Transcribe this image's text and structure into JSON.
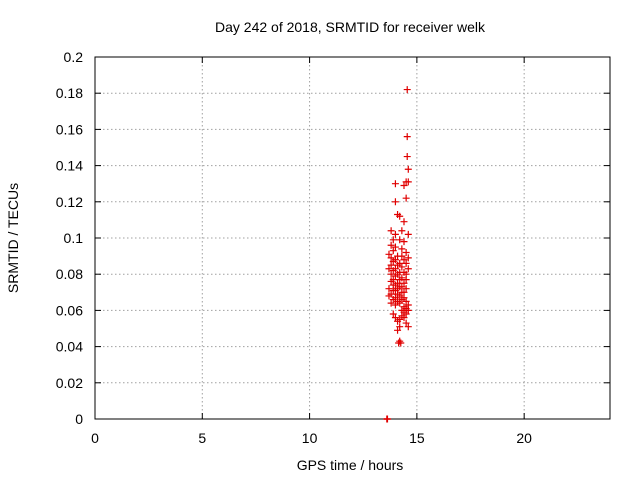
{
  "chart_data": {
    "type": "scatter",
    "title": "Day 242 of 2018, SRMTID for receiver welk",
    "xlabel": "GPS time / hours",
    "ylabel": "SRMTID / TECUs",
    "xlim": [
      0,
      24
    ],
    "ylim": [
      0,
      0.2
    ],
    "xticks": [
      0,
      5,
      10,
      15,
      20
    ],
    "xtick_labels": [
      "0",
      "5",
      "10",
      "15",
      "20"
    ],
    "yticks": [
      0,
      0.02,
      0.04,
      0.06,
      0.08,
      0.1,
      0.12,
      0.14,
      0.16,
      0.18,
      0.2
    ],
    "ytick_labels": [
      "0",
      "0.02",
      "0.04",
      "0.06",
      "0.08",
      "0.1",
      "0.12",
      "0.14",
      "0.16",
      "0.18",
      "0.2"
    ],
    "grid": true,
    "marker": "+",
    "color": "#e00000",
    "series": [
      {
        "name": "SRMTID",
        "points": [
          [
            13.6,
            0.0
          ],
          [
            13.61,
            0.0
          ],
          [
            13.62,
            0.0
          ],
          [
            13.63,
            0.0
          ],
          [
            14.55,
            0.182
          ],
          [
            14.55,
            0.156
          ],
          [
            14.55,
            0.145
          ],
          [
            14.6,
            0.138
          ],
          [
            14.5,
            0.131
          ],
          [
            14.6,
            0.131
          ],
          [
            14.0,
            0.13
          ],
          [
            14.4,
            0.129
          ],
          [
            14.5,
            0.122
          ],
          [
            14.0,
            0.12
          ],
          [
            14.1,
            0.113
          ],
          [
            14.2,
            0.112
          ],
          [
            14.4,
            0.109
          ],
          [
            13.8,
            0.104
          ],
          [
            14.3,
            0.104
          ],
          [
            14.0,
            0.102
          ],
          [
            14.6,
            0.102
          ],
          [
            13.9,
            0.099
          ],
          [
            14.2,
            0.099
          ],
          [
            14.4,
            0.098
          ],
          [
            13.8,
            0.096
          ],
          [
            14.0,
            0.095
          ],
          [
            14.3,
            0.094
          ],
          [
            13.9,
            0.093
          ],
          [
            14.5,
            0.092
          ],
          [
            13.7,
            0.091
          ],
          [
            14.1,
            0.09
          ],
          [
            14.3,
            0.09
          ],
          [
            13.8,
            0.089
          ],
          [
            14.6,
            0.089
          ],
          [
            14.0,
            0.088
          ],
          [
            14.4,
            0.088
          ],
          [
            13.9,
            0.087
          ],
          [
            14.2,
            0.086
          ],
          [
            14.5,
            0.086
          ],
          [
            13.8,
            0.085
          ],
          [
            14.1,
            0.085
          ],
          [
            14.3,
            0.084
          ],
          [
            13.7,
            0.083
          ],
          [
            14.0,
            0.083
          ],
          [
            14.6,
            0.083
          ],
          [
            13.9,
            0.082
          ],
          [
            14.2,
            0.081
          ],
          [
            14.4,
            0.081
          ],
          [
            13.8,
            0.08
          ],
          [
            14.1,
            0.08
          ],
          [
            14.5,
            0.08
          ],
          [
            14.0,
            0.079
          ],
          [
            14.3,
            0.078
          ],
          [
            13.9,
            0.077
          ],
          [
            14.2,
            0.077
          ],
          [
            14.5,
            0.077
          ],
          [
            13.8,
            0.076
          ],
          [
            14.1,
            0.075
          ],
          [
            14.4,
            0.075
          ],
          [
            13.9,
            0.074
          ],
          [
            14.0,
            0.074
          ],
          [
            14.2,
            0.073
          ],
          [
            14.3,
            0.073
          ],
          [
            13.7,
            0.072
          ],
          [
            14.1,
            0.072
          ],
          [
            14.5,
            0.072
          ],
          [
            13.9,
            0.071
          ],
          [
            14.0,
            0.071
          ],
          [
            14.3,
            0.07
          ],
          [
            14.4,
            0.07
          ],
          [
            13.8,
            0.069
          ],
          [
            14.1,
            0.069
          ],
          [
            14.2,
            0.068
          ],
          [
            13.7,
            0.068
          ],
          [
            14.0,
            0.067
          ],
          [
            14.4,
            0.067
          ],
          [
            13.9,
            0.066
          ],
          [
            14.3,
            0.066
          ],
          [
            14.1,
            0.065
          ],
          [
            14.5,
            0.065
          ],
          [
            13.8,
            0.064
          ],
          [
            14.2,
            0.064
          ],
          [
            14.6,
            0.063
          ],
          [
            14.0,
            0.063
          ],
          [
            14.4,
            0.062
          ],
          [
            14.5,
            0.061
          ],
          [
            14.3,
            0.06
          ],
          [
            14.6,
            0.06
          ],
          [
            14.4,
            0.059
          ],
          [
            13.9,
            0.058
          ],
          [
            14.5,
            0.058
          ],
          [
            14.3,
            0.057
          ],
          [
            14.0,
            0.056
          ],
          [
            14.4,
            0.056
          ],
          [
            14.2,
            0.055
          ],
          [
            14.1,
            0.054
          ],
          [
            14.5,
            0.053
          ],
          [
            14.2,
            0.051
          ],
          [
            14.6,
            0.051
          ],
          [
            14.1,
            0.049
          ],
          [
            14.2,
            0.043
          ],
          [
            14.25,
            0.042
          ],
          [
            14.15,
            0.042
          ]
        ]
      }
    ]
  }
}
